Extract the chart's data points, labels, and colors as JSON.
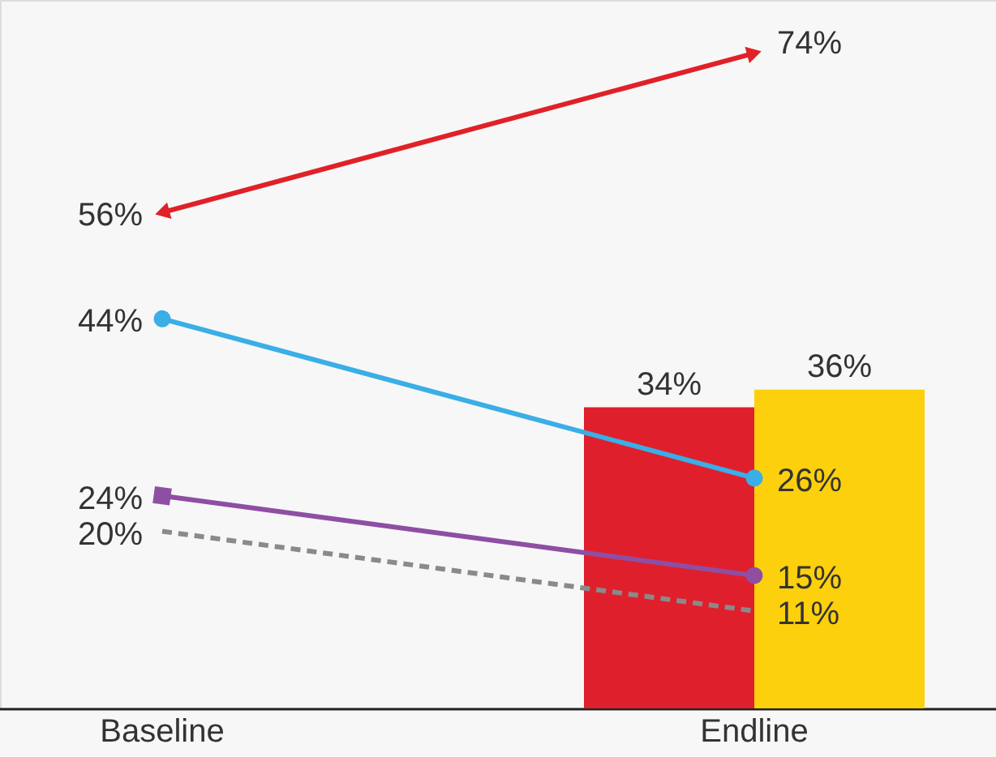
{
  "chart_data": {
    "type": "bar",
    "categories": [
      "Baseline",
      "Endline"
    ],
    "ylim": [
      0,
      80
    ],
    "tick_labels": "x",
    "grid": false,
    "series": [
      {
        "color": "#e01f2d",
        "values": [
          null,
          34
        ],
        "value_labels": [
          null,
          "34%"
        ]
      },
      {
        "color": "#fcd00c",
        "values": [
          null,
          36
        ],
        "value_labels": [
          null,
          "36%"
        ]
      },
      {
        "type": "line",
        "color": "#e02127",
        "values": [
          56,
          74
        ],
        "marker": "triangle",
        "line_style": "solid",
        "value_labels": [
          "56%",
          "74%"
        ]
      },
      {
        "type": "line",
        "color": "#3aaee6",
        "values": [
          44,
          26
        ],
        "marker": "circle",
        "line_style": "solid",
        "value_labels": [
          "44%",
          "26%"
        ]
      },
      {
        "type": "line",
        "color": "#8e4fa3",
        "values": [
          24,
          15
        ],
        "marker": [
          "square",
          "circle"
        ],
        "line_style": "solid",
        "value_labels": [
          "24%",
          "15%"
        ]
      },
      {
        "type": "line",
        "color": "#8a8a8a",
        "values": [
          20,
          11
        ],
        "marker": "none",
        "line_style": "dashed",
        "value_labels": [
          "20%",
          "11%"
        ]
      }
    ]
  }
}
